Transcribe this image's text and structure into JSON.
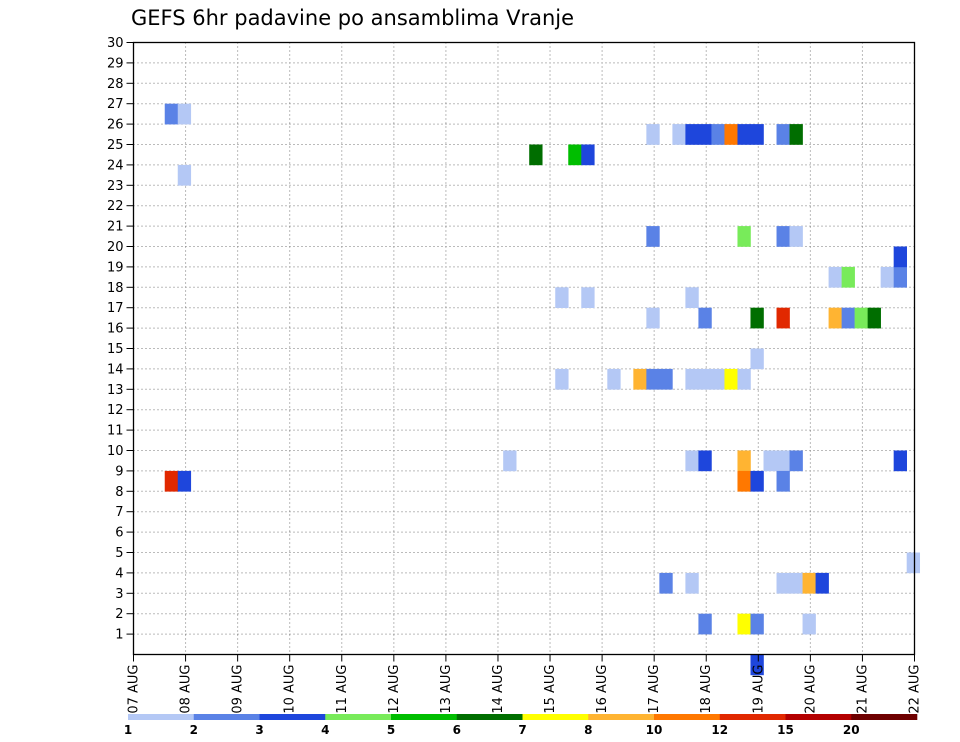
{
  "chart_data": {
    "type": "heatmap",
    "title": "GEFS 6hr padavine po ansamblima Vranje",
    "xlabel": "",
    "ylabel": "",
    "x_tick_labels": [
      "07 AUG",
      "08 AUG",
      "09 AUG",
      "10 AUG",
      "11 AUG",
      "12 AUG",
      "13 AUG",
      "14 AUG",
      "15 AUG",
      "16 AUG",
      "17 AUG",
      "18 AUG",
      "19 AUG",
      "20 AUG",
      "21 AUG",
      "22 AUG"
    ],
    "y_tick_labels": [
      "1",
      "2",
      "3",
      "4",
      "5",
      "6",
      "7",
      "8",
      "9",
      "10",
      "11",
      "12",
      "13",
      "14",
      "15",
      "16",
      "17",
      "18",
      "19",
      "20",
      "21",
      "22",
      "23",
      "24",
      "25",
      "26",
      "27",
      "28",
      "29",
      "30"
    ],
    "x_range_days": [
      0,
      15
    ],
    "y_range": [
      0,
      30
    ],
    "time_step_hours": 6,
    "grid": true,
    "legend": {
      "placement": "bottom",
      "thresholds": [
        "1",
        "2",
        "3",
        "4",
        "5",
        "6",
        "7",
        "8",
        "10",
        "12",
        "15",
        "20"
      ],
      "colors": [
        "#b4c8f5",
        "#5a82e6",
        "#1e46dc",
        "#78eb5a",
        "#00be00",
        "#006e00",
        "#ffff00",
        "#ffb432",
        "#ff7800",
        "#e12800",
        "#b40000",
        "#6e0000"
      ]
    },
    "cells": [
      {
        "x": 0.6,
        "y": 26,
        "bin": 1
      },
      {
        "x": 0.85,
        "y": 26,
        "bin": 0
      },
      {
        "x": 0.85,
        "y": 23,
        "bin": 0
      },
      {
        "x": 0.6,
        "y": 8,
        "bin": 9
      },
      {
        "x": 0.85,
        "y": 8,
        "bin": 2
      },
      {
        "x": 7.1,
        "y": 9,
        "bin": 0
      },
      {
        "x": 7.6,
        "y": 24,
        "bin": 5
      },
      {
        "x": 8.1,
        "y": 13,
        "bin": 0
      },
      {
        "x": 8.1,
        "y": 17,
        "bin": 0
      },
      {
        "x": 8.35,
        "y": 24,
        "bin": 4
      },
      {
        "x": 8.6,
        "y": 24,
        "bin": 2
      },
      {
        "x": 8.6,
        "y": 17,
        "bin": 0
      },
      {
        "x": 9.1,
        "y": 13,
        "bin": 0
      },
      {
        "x": 9.6,
        "y": 13,
        "bin": 7
      },
      {
        "x": 9.85,
        "y": 13,
        "bin": 1
      },
      {
        "x": 10.1,
        "y": 13,
        "bin": 1
      },
      {
        "x": 9.85,
        "y": 25,
        "bin": 0
      },
      {
        "x": 9.85,
        "y": 20,
        "bin": 1
      },
      {
        "x": 9.85,
        "y": 16,
        "bin": 0
      },
      {
        "x": 10.1,
        "y": 3,
        "bin": 1
      },
      {
        "x": 10.35,
        "y": 25,
        "bin": 0
      },
      {
        "x": 10.6,
        "y": 25,
        "bin": 2
      },
      {
        "x": 10.85,
        "y": 25,
        "bin": 2
      },
      {
        "x": 11.1,
        "y": 25,
        "bin": 1
      },
      {
        "x": 11.35,
        "y": 25,
        "bin": 8
      },
      {
        "x": 11.6,
        "y": 25,
        "bin": 2
      },
      {
        "x": 11.85,
        "y": 25,
        "bin": 2
      },
      {
        "x": 10.6,
        "y": 17,
        "bin": 0
      },
      {
        "x": 10.6,
        "y": 13,
        "bin": 0
      },
      {
        "x": 10.85,
        "y": 13,
        "bin": 0
      },
      {
        "x": 11.1,
        "y": 13,
        "bin": 0
      },
      {
        "x": 11.35,
        "y": 13,
        "bin": 6
      },
      {
        "x": 11.6,
        "y": 13,
        "bin": 0
      },
      {
        "x": 10.85,
        "y": 16,
        "bin": 1
      },
      {
        "x": 10.6,
        "y": 9,
        "bin": 0
      },
      {
        "x": 10.85,
        "y": 9,
        "bin": 2
      },
      {
        "x": 10.6,
        "y": 3,
        "bin": 0
      },
      {
        "x": 10.85,
        "y": 1,
        "bin": 1
      },
      {
        "x": 11.6,
        "y": 20,
        "bin": 3
      },
      {
        "x": 11.85,
        "y": 16,
        "bin": 5
      },
      {
        "x": 11.85,
        "y": 14,
        "bin": 0
      },
      {
        "x": 11.6,
        "y": 9,
        "bin": 7
      },
      {
        "x": 11.6,
        "y": 8,
        "bin": 8
      },
      {
        "x": 11.85,
        "y": 8,
        "bin": 2
      },
      {
        "x": 11.6,
        "y": 1,
        "bin": 6
      },
      {
        "x": 11.85,
        "y": 1,
        "bin": 1
      },
      {
        "x": 11.85,
        "y": -1,
        "bin": 2
      },
      {
        "x": 12.1,
        "y": 9,
        "bin": 0
      },
      {
        "x": 12.35,
        "y": 9,
        "bin": 0
      },
      {
        "x": 12.6,
        "y": 9,
        "bin": 1
      },
      {
        "x": 12.35,
        "y": 8,
        "bin": 1
      },
      {
        "x": 12.35,
        "y": 25,
        "bin": 1
      },
      {
        "x": 12.6,
        "y": 25,
        "bin": 5
      },
      {
        "x": 12.35,
        "y": 20,
        "bin": 1
      },
      {
        "x": 12.6,
        "y": 20,
        "bin": 0
      },
      {
        "x": 12.35,
        "y": 16,
        "bin": 9
      },
      {
        "x": 12.35,
        "y": 3,
        "bin": 0
      },
      {
        "x": 12.6,
        "y": 3,
        "bin": 0
      },
      {
        "x": 12.85,
        "y": 3,
        "bin": 7
      },
      {
        "x": 13.1,
        "y": 3,
        "bin": 2
      },
      {
        "x": 12.85,
        "y": 1,
        "bin": 0
      },
      {
        "x": 13.35,
        "y": 18,
        "bin": 0
      },
      {
        "x": 13.6,
        "y": 18,
        "bin": 3
      },
      {
        "x": 13.35,
        "y": 16,
        "bin": 7
      },
      {
        "x": 13.6,
        "y": 16,
        "bin": 1
      },
      {
        "x": 13.85,
        "y": 16,
        "bin": 3
      },
      {
        "x": 14.1,
        "y": 16,
        "bin": 5
      },
      {
        "x": 14.35,
        "y": 18,
        "bin": 0
      },
      {
        "x": 14.6,
        "y": 18,
        "bin": 1
      },
      {
        "x": 14.6,
        "y": 19,
        "bin": 2
      },
      {
        "x": 14.6,
        "y": 9,
        "bin": 2
      },
      {
        "x": 14.85,
        "y": 4,
        "bin": 0
      }
    ]
  }
}
